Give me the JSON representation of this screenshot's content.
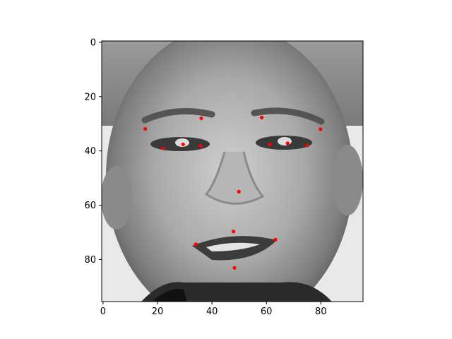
{
  "chart_data": {
    "type": "scatter",
    "title": "",
    "xlabel": "",
    "ylabel": "",
    "xlim": [
      -0.5,
      95.5
    ],
    "ylim": [
      95.5,
      -0.5
    ],
    "y_axis_inverted": true,
    "grid": false,
    "legend": "none",
    "background": "grayscale face photograph (96x96 image)",
    "x_ticks": [
      0,
      20,
      40,
      60,
      80
    ],
    "y_ticks": [
      0,
      20,
      40,
      60,
      80
    ],
    "x_tick_labels": [
      "0",
      "20",
      "40",
      "60",
      "80"
    ],
    "y_tick_labels": [
      "0",
      "20",
      "40",
      "60",
      "80"
    ],
    "marker_color": "#ff0000",
    "points": [
      {
        "x": 15.5,
        "y": 31.9
      },
      {
        "x": 36.1,
        "y": 28.0
      },
      {
        "x": 22.0,
        "y": 39.0
      },
      {
        "x": 29.4,
        "y": 37.6
      },
      {
        "x": 35.9,
        "y": 38.2
      },
      {
        "x": 58.3,
        "y": 27.7
      },
      {
        "x": 79.9,
        "y": 32.0
      },
      {
        "x": 61.3,
        "y": 37.6
      },
      {
        "x": 67.8,
        "y": 37.2
      },
      {
        "x": 75.0,
        "y": 38.0
      },
      {
        "x": 49.9,
        "y": 55.0
      },
      {
        "x": 47.9,
        "y": 69.7
      },
      {
        "x": 34.1,
        "y": 74.4
      },
      {
        "x": 63.3,
        "y": 72.7
      },
      {
        "x": 48.3,
        "y": 83.1
      }
    ]
  }
}
